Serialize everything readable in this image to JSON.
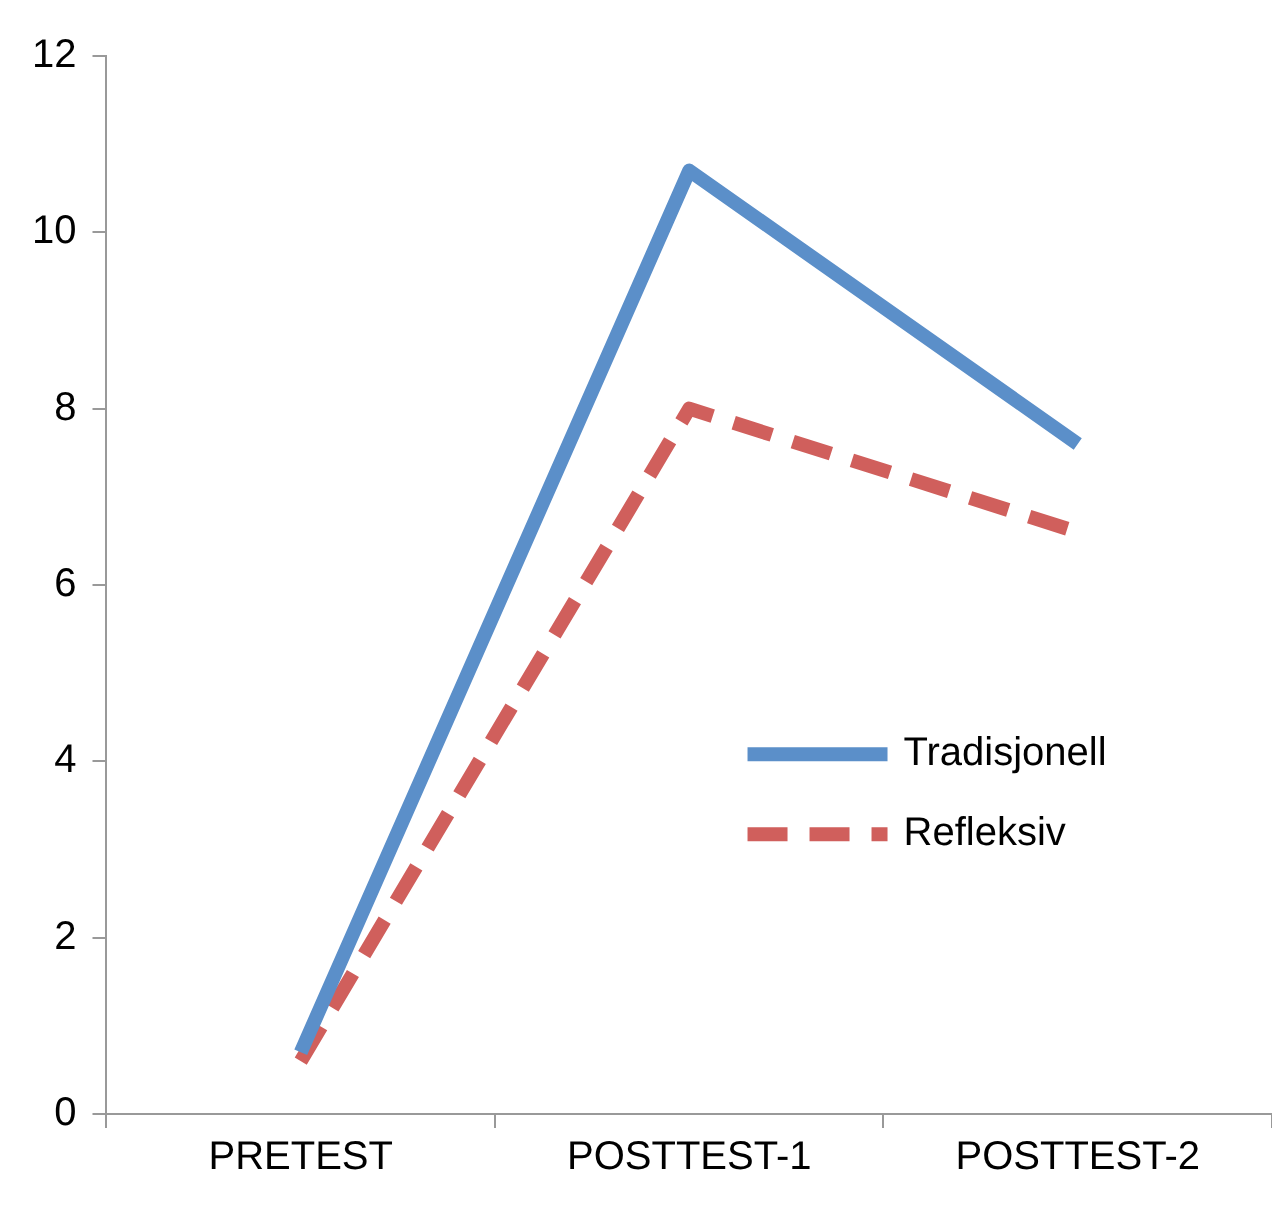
{
  "chart_data": {
    "type": "line",
    "categories": [
      "PRETEST",
      "POSTTEST-1",
      "POSTTEST-2"
    ],
    "series": [
      {
        "name": "Tradisjonell",
        "color": "#5b8fc9",
        "values": [
          0.7,
          10.7,
          7.6
        ],
        "line_style": "solid"
      },
      {
        "name": "Refleksiv",
        "color": "#d05f5c",
        "values": [
          0.6,
          8.0,
          6.6
        ],
        "line_style": "dashed"
      }
    ],
    "ylim": [
      0,
      12
    ],
    "yticks": [
      0,
      2,
      4,
      6,
      8,
      10,
      12
    ],
    "grid": false,
    "legend": "right",
    "marker": "none"
  }
}
